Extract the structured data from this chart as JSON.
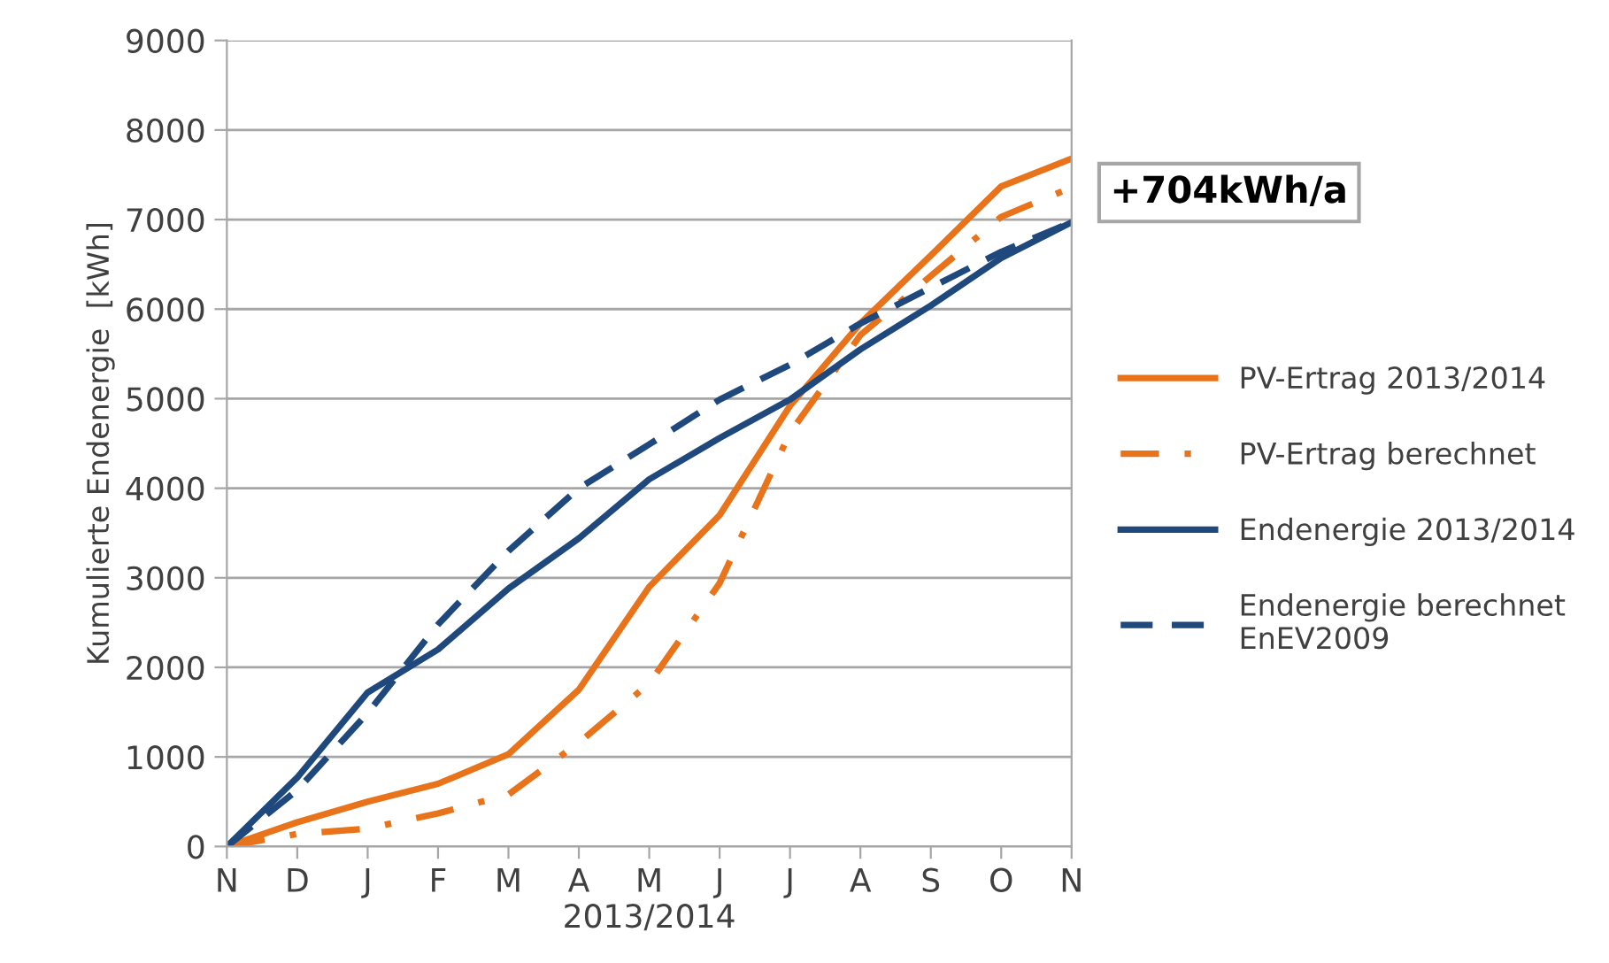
{
  "chart_data": {
    "type": "line",
    "xlabel": "2013/2014",
    "ylabel": "Kumulierte Endenergie  [kWh]",
    "categories": [
      "N",
      "D",
      "J",
      "F",
      "M",
      "A",
      "M",
      "J",
      "J",
      "A",
      "S",
      "O",
      "N"
    ],
    "series": [
      {
        "name": "PV-Ertrag 2013/2014",
        "color": "#e8731a",
        "line_style": "solid",
        "values": [
          0,
          270,
          500,
          700,
          1030,
          1750,
          2900,
          3700,
          4920,
          5840,
          6600,
          7370,
          7680
        ]
      },
      {
        "name": "PV-Ertrag berechnet",
        "color": "#e8731a",
        "line_style": "dashdot",
        "values": [
          0,
          140,
          200,
          370,
          580,
          1160,
          1820,
          2940,
          4620,
          5710,
          6370,
          7030,
          7360
        ]
      },
      {
        "name": "Endenergie 2013/2014",
        "color": "#1f497d",
        "line_style": "solid",
        "values": [
          0,
          770,
          1720,
          2200,
          2880,
          3440,
          4100,
          4560,
          4990,
          5550,
          6040,
          6570,
          6970
        ]
      },
      {
        "name": "Endenergie berechnet\nEnEV2009",
        "color": "#1f497d",
        "line_style": "dashed",
        "values": [
          0,
          630,
          1490,
          2480,
          3300,
          4000,
          4490,
          4990,
          5380,
          5840,
          6240,
          6640,
          6970
        ]
      }
    ],
    "ylim": [
      0,
      9000
    ],
    "yticks": [
      0,
      1000,
      2000,
      3000,
      4000,
      5000,
      6000,
      7000,
      8000,
      9000
    ],
    "grid": "y",
    "legend": "right",
    "marker": "none",
    "annotations": [
      "+704kWh/a"
    ]
  }
}
